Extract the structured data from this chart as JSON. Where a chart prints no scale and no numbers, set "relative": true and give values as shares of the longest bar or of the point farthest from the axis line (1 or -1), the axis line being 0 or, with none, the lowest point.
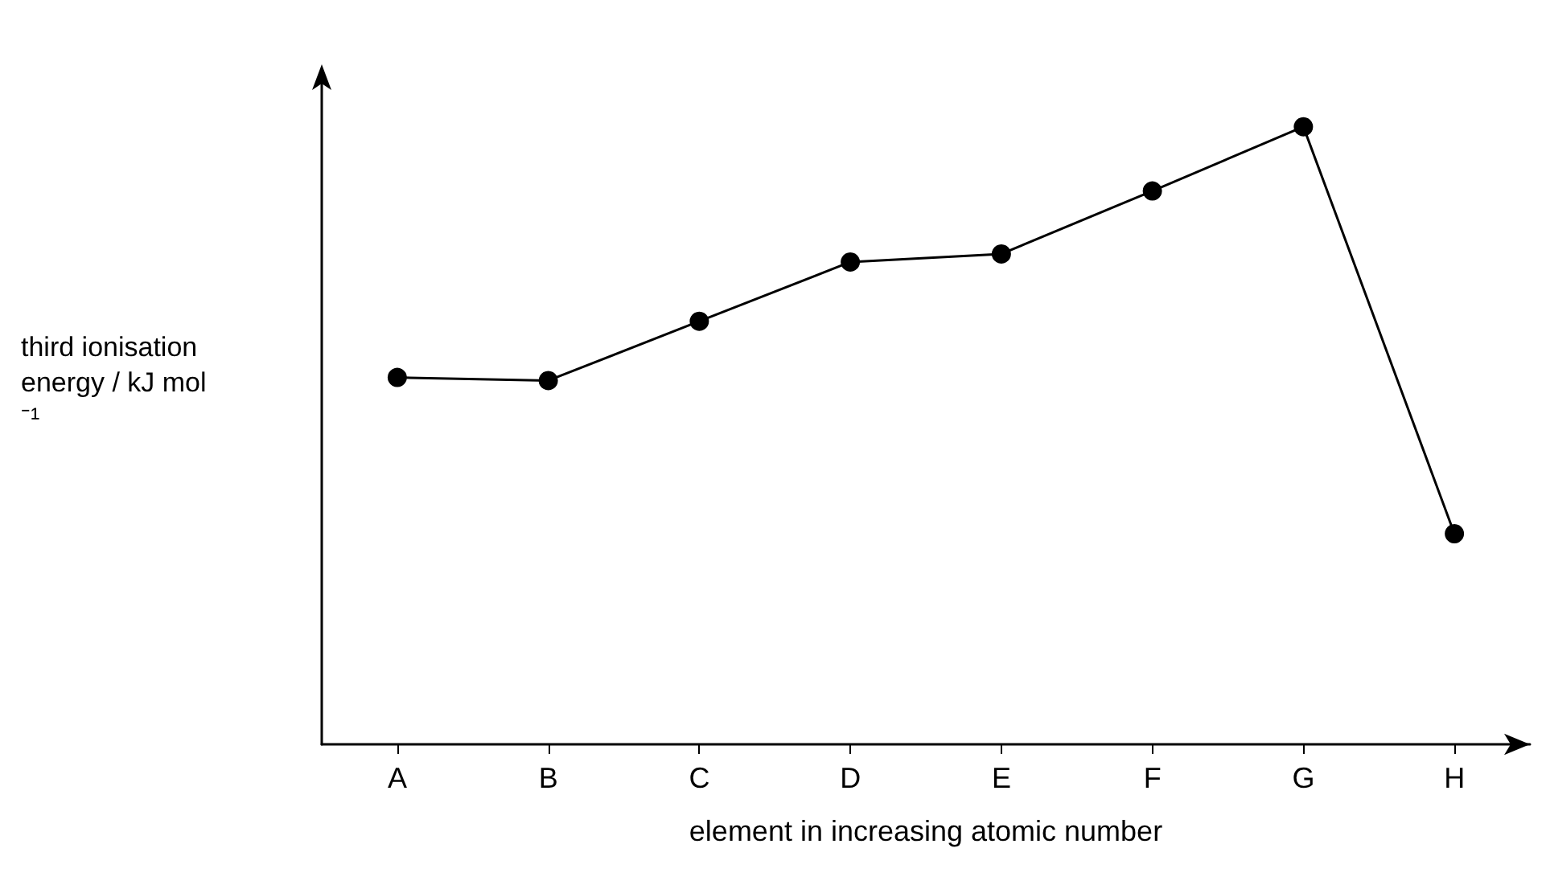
{
  "chart_data": {
    "type": "line",
    "relative": true,
    "xlabel": "element in increasing atomic number",
    "ylabel": "third ionisation energy / kJ mol⁻¹",
    "categories": [
      "A",
      "B",
      "C",
      "D",
      "E",
      "F",
      "G",
      "H"
    ],
    "series": [
      {
        "color": "#000000",
        "values": [
          0.594,
          0.589,
          0.685,
          0.781,
          0.794,
          0.896,
          1,
          0.341
        ]
      }
    ],
    "marker": "circle",
    "line_style": "solid",
    "grid": false
  }
}
